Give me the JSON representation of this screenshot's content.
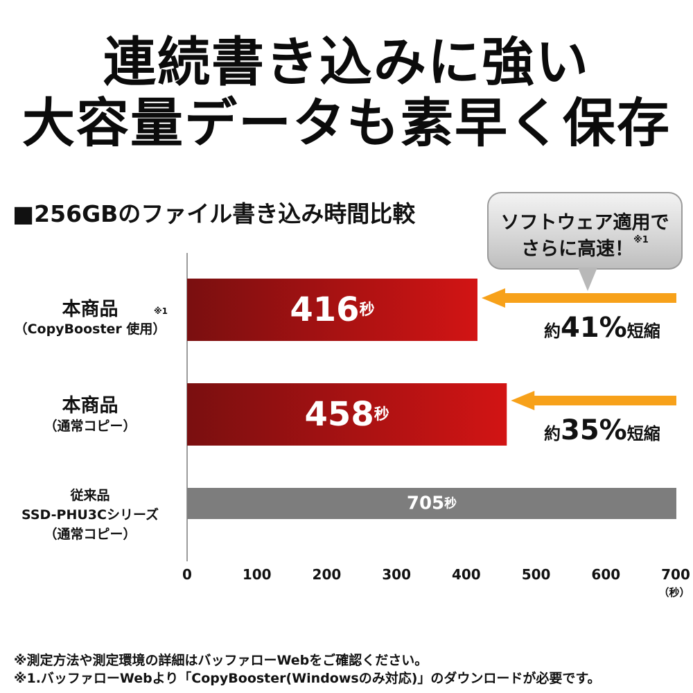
{
  "headline": {
    "line1": "連続書き込みに強い",
    "line2": "大容量データも素早く保存"
  },
  "callout": {
    "line1": "ソフトウェア適用で",
    "line2": "さらに高速！",
    "note": "※1"
  },
  "reductions": [
    {
      "prefix": "約",
      "value": "41%",
      "suffix": "短縮"
    },
    {
      "prefix": "約",
      "value": "35%",
      "suffix": "短縮"
    }
  ],
  "categories": [
    {
      "main": "本商品",
      "sub": "（CopyBooster 使用）",
      "note": "※1"
    },
    {
      "main": "本商品",
      "sub": "（通常コピー）"
    },
    {
      "main": "従来品",
      "sub": "SSD-PHU3Cシリーズ",
      "sub2": "（通常コピー）"
    }
  ],
  "footnotes": [
    "※測定方法や測定環境の詳細はバッファローWebをご確認ください。",
    "※1.バッファローWebより「CopyBooster(Windowsのみ対応)」のダウンロードが必要です。"
  ],
  "colors": {
    "bar_red_dark": "#7a0f10",
    "bar_red_light": "#d21414",
    "bar_gray": "#7d7d7d",
    "arrow_orange": "#f7a11a"
  },
  "chart_data": {
    "type": "bar",
    "orientation": "horizontal",
    "title": "■256GBのファイル書き込み時間比較",
    "values": [
      416,
      458,
      705
    ],
    "value_labels": [
      {
        "num": "416",
        "unit": "秒"
      },
      {
        "num": "458",
        "unit": "秒"
      },
      {
        "num": "705",
        "unit": "秒"
      }
    ],
    "xlim": [
      0,
      700
    ],
    "xticks": [
      0,
      100,
      200,
      300,
      400,
      500,
      600,
      700
    ],
    "xunit": "（秒）",
    "grid": false
  }
}
